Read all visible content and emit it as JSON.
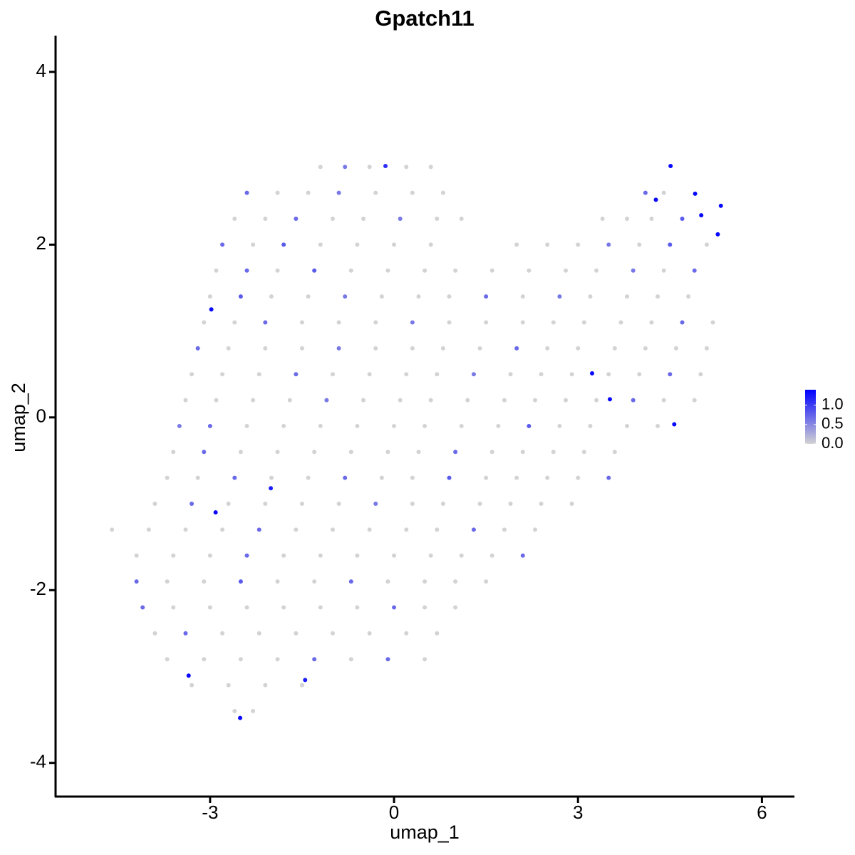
{
  "chart_data": {
    "type": "scatter",
    "title": "Gpatch11",
    "x_label": "umap_1",
    "y_label": "umap_2",
    "xlim": [
      -5.52,
      6.53
    ],
    "ylim": [
      -4.39,
      4.42
    ],
    "xticks": [
      -3,
      0,
      3,
      6
    ],
    "yticks": [
      -4,
      -2,
      0,
      2,
      4
    ],
    "colorbar": {
      "lim": [
        0,
        1.4
      ],
      "ticks": [
        {
          "value": 0,
          "label": "0.0"
        },
        0.5,
        {
          "value": 1,
          "label": "1.0"
        }
      ],
      "colors": [
        "#d3d3d3",
        "#0000ff"
      ]
    },
    "series": [
      {
        "x": [
          -1.2,
          -0.8,
          -0.4,
          0.2,
          0.6,
          -2.4,
          -1.9,
          -1.4,
          -0.9,
          -0.3,
          0.3,
          0.8,
          4.1,
          4.4,
          -2.6,
          -2.1,
          -1.6,
          -1.0,
          -0.5,
          0.1,
          0.7,
          1.1,
          3.4,
          3.8,
          4.2,
          4.7,
          -2.8,
          -2.3,
          -1.8,
          -1.2,
          -0.6,
          0.0,
          0.6,
          2.0,
          2.5,
          3.0,
          3.5,
          4.0,
          4.5,
          5.1,
          -2.9,
          -2.4,
          -1.9,
          -1.3,
          -0.7,
          -0.1,
          0.5,
          1.0,
          1.6,
          2.2,
          2.8,
          3.3,
          3.9,
          4.4,
          4.9,
          -3.0,
          -2.5,
          -2.0,
          -1.4,
          -0.8,
          -0.2,
          0.4,
          0.9,
          1.5,
          2.1,
          2.7,
          3.2,
          3.8,
          4.3,
          4.8,
          -3.1,
          -2.6,
          -2.1,
          -1.5,
          -0.9,
          -0.3,
          0.3,
          0.9,
          1.5,
          2.1,
          2.6,
          3.1,
          3.7,
          4.2,
          4.7,
          5.2,
          -3.2,
          -2.7,
          -2.1,
          -1.5,
          -0.9,
          -0.3,
          0.3,
          0.8,
          1.4,
          2.0,
          2.5,
          3.0,
          3.6,
          4.1,
          4.6,
          5.1,
          -3.3,
          -2.8,
          -2.2,
          -1.6,
          -1.0,
          -0.4,
          0.2,
          0.7,
          1.3,
          1.9,
          2.4,
          2.9,
          3.5,
          4.0,
          4.5,
          5.0,
          -3.4,
          -2.9,
          -2.3,
          -1.7,
          -1.1,
          -0.5,
          0.1,
          0.6,
          1.2,
          1.8,
          2.3,
          2.8,
          3.3,
          3.9,
          4.4,
          4.9,
          -3.5,
          -3.0,
          -2.4,
          -1.8,
          -1.2,
          -0.6,
          0.0,
          0.5,
          1.1,
          1.7,
          2.2,
          2.7,
          3.2,
          3.8,
          4.3,
          -3.6,
          -3.1,
          -2.5,
          -1.9,
          -1.3,
          -0.7,
          -0.1,
          0.4,
          1.0,
          1.6,
          2.1,
          2.6,
          3.1,
          3.6,
          -3.7,
          -3.2,
          -2.6,
          -2.0,
          -1.4,
          -0.8,
          -0.2,
          0.3,
          0.9,
          1.5,
          2.0,
          2.5,
          3.0,
          3.5,
          -3.9,
          -3.3,
          -2.7,
          -2.1,
          -1.5,
          -0.9,
          -0.3,
          0.3,
          0.8,
          1.4,
          1.9,
          2.4,
          2.9,
          -4.6,
          -4.0,
          -3.4,
          -2.8,
          -2.2,
          -1.6,
          -1.0,
          -0.4,
          0.2,
          0.7,
          1.3,
          1.8,
          2.3,
          -4.2,
          -3.6,
          -3.0,
          -2.4,
          -1.8,
          -1.2,
          -0.6,
          0.0,
          0.6,
          1.1,
          1.6,
          2.1,
          -4.2,
          -3.7,
          -3.1,
          -2.5,
          -1.9,
          -1.3,
          -0.7,
          -0.1,
          0.5,
          1.0,
          1.5,
          -4.1,
          -3.6,
          -3.0,
          -2.4,
          -1.8,
          -1.2,
          -0.6,
          0.0,
          0.5,
          1.0,
          -3.9,
          -3.4,
          -2.8,
          -2.2,
          -1.6,
          -1.0,
          -0.4,
          0.2,
          0.7,
          -3.7,
          -3.1,
          -2.5,
          -1.9,
          -1.3,
          -0.7,
          -0.1,
          0.5,
          -3.3,
          -2.7,
          -2.1,
          -1.5,
          -2.6,
          -2.3,
          -2.98,
          -2.91,
          -2.01,
          -3.35,
          -2.51,
          -1.45,
          3.23,
          3.52,
          4.57,
          4.51,
          4.27,
          4.91,
          5.01,
          5.33,
          5.28,
          -0.14
        ],
        "values": [
          2.9,
          2.9,
          2.9,
          2.9,
          2.9,
          2.6,
          2.6,
          2.6,
          2.6,
          2.6,
          2.6,
          2.6,
          2.6,
          2.6,
          2.3,
          2.3,
          2.3,
          2.3,
          2.3,
          2.3,
          2.3,
          2.3,
          2.3,
          2.3,
          2.3,
          2.3,
          2.0,
          2.0,
          2.0,
          2.0,
          2.0,
          2.0,
          2.0,
          2.0,
          2.0,
          2.0,
          2.0,
          2.0,
          2.0,
          2.0,
          1.7,
          1.7,
          1.7,
          1.7,
          1.7,
          1.7,
          1.7,
          1.7,
          1.7,
          1.7,
          1.7,
          1.7,
          1.7,
          1.7,
          1.7,
          1.4,
          1.4,
          1.4,
          1.4,
          1.4,
          1.4,
          1.4,
          1.4,
          1.4,
          1.4,
          1.4,
          1.4,
          1.4,
          1.4,
          1.4,
          1.1,
          1.1,
          1.1,
          1.1,
          1.1,
          1.1,
          1.1,
          1.1,
          1.1,
          1.1,
          1.1,
          1.1,
          1.1,
          1.1,
          1.1,
          1.1,
          0.8,
          0.8,
          0.8,
          0.8,
          0.8,
          0.8,
          0.8,
          0.8,
          0.8,
          0.8,
          0.8,
          0.8,
          0.8,
          0.8,
          0.8,
          0.8,
          0.5,
          0.5,
          0.5,
          0.5,
          0.5,
          0.5,
          0.5,
          0.5,
          0.5,
          0.5,
          0.5,
          0.5,
          0.5,
          0.5,
          0.5,
          0.5,
          0.2,
          0.2,
          0.2,
          0.2,
          0.2,
          0.2,
          0.2,
          0.2,
          0.2,
          0.2,
          0.2,
          0.2,
          0.2,
          0.2,
          0.2,
          0.2,
          -0.1,
          -0.1,
          -0.1,
          -0.1,
          -0.1,
          -0.1,
          -0.1,
          -0.1,
          -0.1,
          -0.1,
          -0.1,
          -0.1,
          -0.1,
          -0.1,
          -0.1,
          -0.4,
          -0.4,
          -0.4,
          -0.4,
          -0.4,
          -0.4,
          -0.4,
          -0.4,
          -0.4,
          -0.4,
          -0.4,
          -0.4,
          -0.4,
          -0.4,
          -0.7,
          -0.7,
          -0.7,
          -0.7,
          -0.7,
          -0.7,
          -0.7,
          -0.7,
          -0.7,
          -0.7,
          -0.7,
          -0.7,
          -0.7,
          -0.7,
          -1.0,
          -1.0,
          -1.0,
          -1.0,
          -1.0,
          -1.0,
          -1.0,
          -1.0,
          -1.0,
          -1.0,
          -1.0,
          -1.0,
          -1.0,
          -1.3,
          -1.3,
          -1.3,
          -1.3,
          -1.3,
          -1.3,
          -1.3,
          -1.3,
          -1.3,
          -1.3,
          -1.3,
          -1.3,
          -1.3,
          -1.6,
          -1.6,
          -1.6,
          -1.6,
          -1.6,
          -1.6,
          -1.6,
          -1.6,
          -1.6,
          -1.6,
          -1.6,
          -1.6,
          -1.9,
          -1.9,
          -1.9,
          -1.9,
          -1.9,
          -1.9,
          -1.9,
          -1.9,
          -1.9,
          -1.9,
          -1.9,
          -2.2,
          -2.2,
          -2.2,
          -2.2,
          -2.2,
          -2.2,
          -2.2,
          -2.2,
          -2.2,
          -2.2,
          -2.5,
          -2.5,
          -2.5,
          -2.5,
          -2.5,
          -2.5,
          -2.5,
          -2.5,
          -2.5,
          -2.8,
          -2.8,
          -2.8,
          -2.8,
          -2.8,
          -2.8,
          -2.8,
          -2.8,
          -3.1,
          -3.1,
          -3.1,
          -3.1,
          -3.4,
          -3.4,
          1.25,
          -1.1,
          -0.82,
          -2.99,
          -3.48,
          -3.04,
          0.51,
          0.21,
          -0.08,
          2.91,
          2.52,
          2.59,
          2.34,
          2.45,
          2.12,
          2.91
        ],
        "expression": [
          0,
          0.6,
          0,
          0,
          0,
          0.7,
          0,
          0,
          0.6,
          0,
          0,
          0,
          0.7,
          0,
          0,
          0,
          0.7,
          0,
          0,
          0.6,
          0,
          0,
          0,
          0,
          0,
          0.8,
          0.7,
          0,
          0.8,
          0,
          0,
          0,
          0,
          0,
          0,
          0,
          0.6,
          0,
          0.8,
          0,
          0,
          0.7,
          0,
          0.8,
          0,
          0,
          0,
          0,
          0,
          0,
          0,
          0,
          0.6,
          0,
          0.7,
          0,
          0.8,
          0,
          0,
          0.6,
          0,
          0,
          0,
          0.7,
          0,
          0.6,
          0,
          0,
          0,
          0,
          0,
          0,
          0.7,
          0,
          0,
          0,
          0.6,
          0,
          0,
          0,
          0,
          0,
          0,
          0,
          0.7,
          0,
          0.7,
          0,
          0,
          0,
          0.6,
          0,
          0,
          0,
          0,
          0.7,
          0,
          0,
          0,
          0,
          0,
          0,
          0,
          0,
          0,
          0.7,
          0,
          0,
          0,
          0,
          0.6,
          0,
          0,
          0,
          0,
          0,
          0.7,
          0,
          0,
          0,
          0,
          0,
          0.6,
          0,
          0,
          0,
          0,
          0,
          0,
          0,
          0,
          0.7,
          0,
          0,
          0.6,
          0.7,
          0,
          0,
          0,
          0,
          0,
          0,
          0,
          0,
          0.8,
          0,
          0,
          0,
          0,
          0,
          0.7,
          0,
          0,
          0,
          0,
          0,
          0,
          0.7,
          0,
          0,
          0,
          0,
          0,
          0,
          0,
          0.7,
          0,
          0,
          0.7,
          0,
          0,
          0.8,
          0,
          0,
          0,
          0,
          0.7,
          0,
          0.7,
          0,
          0,
          0,
          0,
          0.6,
          0,
          0,
          0,
          0,
          0,
          0,
          0,
          0,
          0,
          0,
          0.7,
          0,
          0,
          0,
          0,
          0,
          0.7,
          0,
          0,
          0,
          0,
          0,
          0.7,
          0,
          0,
          0,
          0,
          0,
          0,
          0,
          0.7,
          0.7,
          0,
          0,
          0.8,
          0,
          0,
          0.7,
          0,
          0,
          0,
          0,
          0.7,
          0,
          0,
          0,
          0,
          0,
          0,
          0.7,
          0,
          0,
          0,
          0.7,
          0,
          0,
          0,
          0,
          0,
          0,
          0,
          0,
          0,
          0,
          0,
          0.7,
          0,
          0.7,
          0,
          0,
          0,
          0,
          0,
          0,
          0,
          1.35,
          1.35,
          1.2,
          1.35,
          1.35,
          1.2,
          1.35,
          1.35,
          1.35,
          1.35,
          1.35,
          1.35,
          1.35,
          1.35,
          1.35,
          1.1
        ]
      }
    ]
  }
}
